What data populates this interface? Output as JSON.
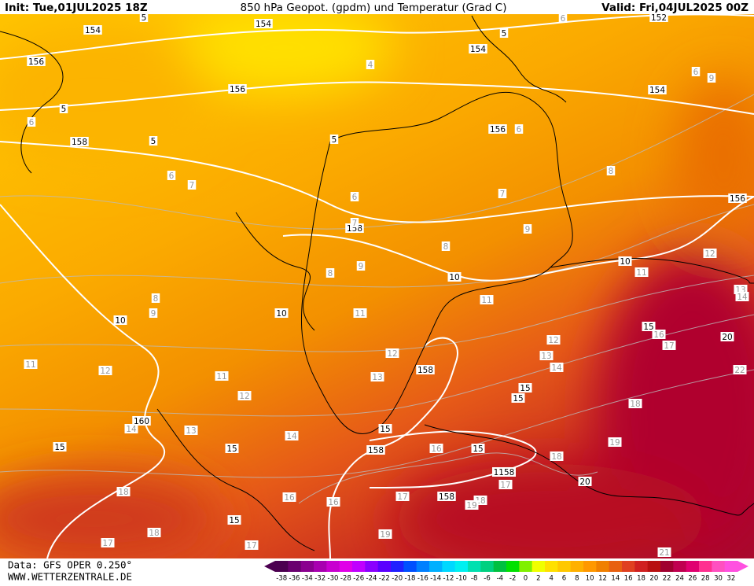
{
  "header": {
    "init": "Init: Tue,01JUL2025 18Z",
    "title": "850 hPa Geopot. (gpdm) und Temperatur (Grad C)",
    "valid": "Valid: Fri,04JUL2025 00Z"
  },
  "map": {
    "geopotential_labels": [
      "154",
      "154",
      "152",
      "156",
      "154",
      "156",
      "154",
      "158",
      "156",
      "156",
      "158",
      "10",
      "10",
      "10",
      "10",
      "158",
      "160",
      "15",
      "15",
      "15",
      "15",
      "15",
      "158",
      "15",
      "1158",
      "158",
      "20",
      "20",
      "15",
      "15",
      "5",
      "5",
      "5",
      "5",
      "5"
    ],
    "temperature_labels": [
      "6",
      "4",
      "6",
      "9",
      "6",
      "6",
      "6",
      "7",
      "8",
      "6",
      "7",
      "7",
      "9",
      "8",
      "9",
      "8",
      "12",
      "11",
      "13",
      "14",
      "8",
      "9",
      "11",
      "11",
      "16",
      "17",
      "12",
      "13",
      "14",
      "12",
      "11",
      "12",
      "11",
      "13",
      "12",
      "22",
      "18",
      "14",
      "13",
      "14",
      "16",
      "18",
      "19",
      "17",
      "18",
      "16",
      "16",
      "17",
      "18",
      "19",
      "17",
      "18",
      "19",
      "17",
      "21"
    ]
  },
  "footer": {
    "source": "Data: GFS OPER 0.250°",
    "website": "WWW.WETTERZENTRALE.DE"
  },
  "colorbar": {
    "labels": [
      -38,
      -36,
      -34,
      -32,
      -30,
      -28,
      -26,
      -24,
      -22,
      -20,
      -18,
      -16,
      -14,
      -12,
      -10,
      -8,
      -6,
      -4,
      -2,
      0,
      2,
      4,
      6,
      8,
      10,
      12,
      14,
      16,
      18,
      20,
      22,
      24,
      26,
      28,
      30,
      32
    ],
    "colors": [
      "#4b0050",
      "#6a006f",
      "#8a008f",
      "#a800b0",
      "#c800d0",
      "#e000e8",
      "#c000ff",
      "#8a00ff",
      "#5a00ff",
      "#2020ff",
      "#0050ff",
      "#0080ff",
      "#00b0ff",
      "#00d8ff",
      "#00f0f0",
      "#00e0b0",
      "#00d080",
      "#00c040",
      "#00e000",
      "#80f000",
      "#f0ff00",
      "#ffe000",
      "#ffc800",
      "#ffb000",
      "#ff9800",
      "#f08000",
      "#e86010",
      "#e04020",
      "#d02020",
      "#b81010",
      "#a00030",
      "#c00050",
      "#e00070",
      "#ff3090",
      "#ff50c0",
      "#ff50e0"
    ]
  }
}
